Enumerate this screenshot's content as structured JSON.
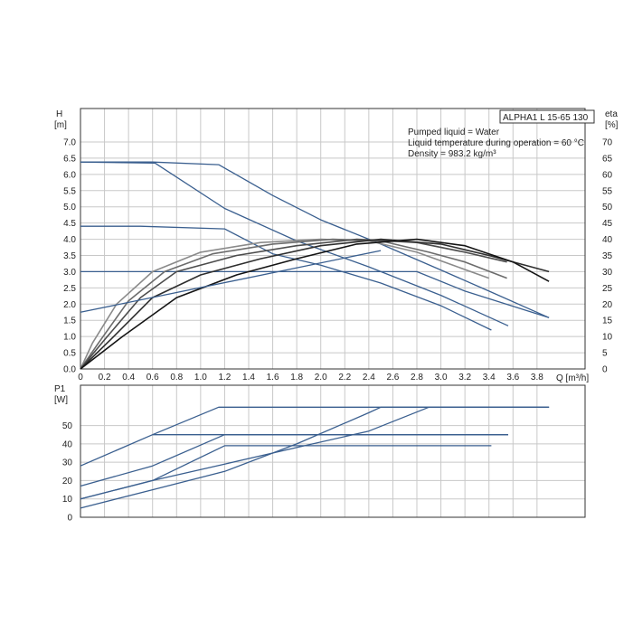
{
  "chart_data": [
    {
      "type": "line",
      "title": "ALPHA1 L 15-65 130",
      "info_lines": [
        "Pumped liquid = Water",
        "Liquid temperature during operation = 60 °C",
        "Density = 983.2 kg/m³"
      ],
      "ylabel": [
        "H",
        "[m]"
      ],
      "y2label": [
        "eta",
        "[%]"
      ],
      "xlabel": "Q [m³/h]",
      "xlim": [
        0,
        4.2
      ],
      "ylim": [
        0,
        7.0
      ],
      "y2lim": [
        0,
        70
      ],
      "xticks": [
        "0",
        "0.2",
        "0.4",
        "0.6",
        "0.8",
        "1.0",
        "1.2",
        "1.4",
        "1.6",
        "1.8",
        "2.0",
        "2.2",
        "2.4",
        "2.6",
        "2.8",
        "3.0",
        "3.2",
        "3.4",
        "3.6",
        "3.8"
      ],
      "yticks": [
        "0.0",
        "0.5",
        "1.0",
        "1.5",
        "2.0",
        "2.5",
        "3.0",
        "3.5",
        "4.0",
        "4.5",
        "5.0",
        "5.5",
        "6.0",
        "6.5",
        "7.0"
      ],
      "y2ticks": [
        "0",
        "5",
        "10",
        "15",
        "20",
        "25",
        "30",
        "35",
        "40",
        "45",
        "50",
        "55",
        "60",
        "65",
        "70"
      ],
      "grid": true,
      "colors": {
        "head": "#3a5f8f",
        "eta": [
          "#8a8a8a",
          "#6c6c6c",
          "#4c4c4c",
          "#2e2e2e",
          "#141414"
        ]
      },
      "series": [
        {
          "kind": "head",
          "x": [
            0,
            0.6,
            1.15,
            1.6,
            2.0,
            2.5,
            3.0,
            3.4,
            3.9
          ],
          "y": [
            6.38,
            6.38,
            6.3,
            5.35,
            4.6,
            3.85,
            3.05,
            2.4,
            1.58
          ]
        },
        {
          "kind": "head",
          "x": [
            0,
            0.62,
            1.2,
            1.8,
            2.4,
            3.0,
            3.56
          ],
          "y": [
            6.38,
            6.35,
            4.95,
            3.95,
            3.15,
            2.27,
            1.33
          ]
        },
        {
          "kind": "head",
          "x": [
            0,
            0.5,
            1.2,
            1.6,
            2.0,
            2.5,
            3.0,
            3.42
          ],
          "y": [
            4.4,
            4.4,
            4.32,
            3.55,
            3.2,
            2.65,
            1.95,
            1.2
          ]
        },
        {
          "kind": "head",
          "x": [
            0,
            2.5,
            2.8,
            3.2,
            3.9
          ],
          "y": [
            3.0,
            3.0,
            3.0,
            2.4,
            1.58
          ]
        },
        {
          "kind": "eta",
          "x": [
            0,
            0.1,
            0.3,
            0.6,
            1.0,
            1.5,
            2.0,
            2.4,
            2.8,
            3.1,
            3.4
          ],
          "y": [
            0,
            8,
            20,
            30,
            36,
            39,
            40,
            39.5,
            36,
            32,
            28
          ]
        },
        {
          "kind": "eta",
          "x": [
            0,
            0.15,
            0.4,
            0.7,
            1.1,
            1.6,
            2.1,
            2.5,
            2.9,
            3.2,
            3.55
          ],
          "y": [
            0,
            8,
            21,
            30,
            35.5,
            38.5,
            40,
            39.5,
            36,
            33,
            28
          ]
        },
        {
          "kind": "eta",
          "x": [
            0,
            0.2,
            0.5,
            0.8,
            1.3,
            1.8,
            2.3,
            2.8,
            3.2,
            3.55
          ],
          "y": [
            0,
            9,
            22,
            30,
            35,
            38,
            40,
            39,
            36,
            33
          ]
        },
        {
          "kind": "eta",
          "x": [
            0,
            0.25,
            0.6,
            1.0,
            1.5,
            2.0,
            2.5,
            3.0,
            3.4,
            3.9
          ],
          "y": [
            0,
            9,
            22,
            29,
            34,
            38,
            40,
            38.5,
            35,
            30
          ]
        },
        {
          "kind": "eta",
          "x": [
            0,
            0.35,
            0.8,
            1.3,
            1.8,
            2.3,
            2.8,
            3.2,
            3.6,
            3.9
          ],
          "y": [
            0,
            10,
            22,
            29,
            34,
            38.5,
            40,
            38,
            33,
            27
          ]
        },
        {
          "kind": "head",
          "x": [
            0,
            2.5
          ],
          "y": [
            1.75,
            3.65
          ]
        }
      ]
    },
    {
      "type": "line",
      "ylabel": [
        "P1",
        "[W]"
      ],
      "xlim": [
        0,
        4.2
      ],
      "ylim": [
        0,
        70
      ],
      "yticks": [
        "0",
        "10",
        "20",
        "30",
        "40",
        "50"
      ],
      "grid": true,
      "colors": {
        "power": "#3a5f8f"
      },
      "series": [
        {
          "x": [
            0,
            0.6,
            1.15,
            3.9
          ],
          "y": [
            28,
            45,
            60,
            60
          ]
        },
        {
          "x": [
            0,
            0.6,
            1.2,
            3.56
          ],
          "y": [
            17,
            28,
            45,
            45
          ]
        },
        {
          "x": [
            0,
            0.6,
            1.2,
            3.42
          ],
          "y": [
            10,
            20,
            39,
            39
          ]
        },
        {
          "x": [
            0,
            0.6,
            1.2,
            1.8,
            2.4,
            2.5,
            3.9
          ],
          "y": [
            5,
            15,
            25,
            40,
            57,
            60,
            60
          ]
        },
        {
          "x": [
            0,
            0.6,
            1.2,
            1.8,
            2.4,
            2.9,
            3.9
          ],
          "y": [
            10,
            20,
            29,
            38,
            47,
            60,
            60
          ]
        },
        {
          "x": [
            0.6,
            3.56
          ],
          "y": [
            45,
            45
          ]
        }
      ]
    }
  ]
}
